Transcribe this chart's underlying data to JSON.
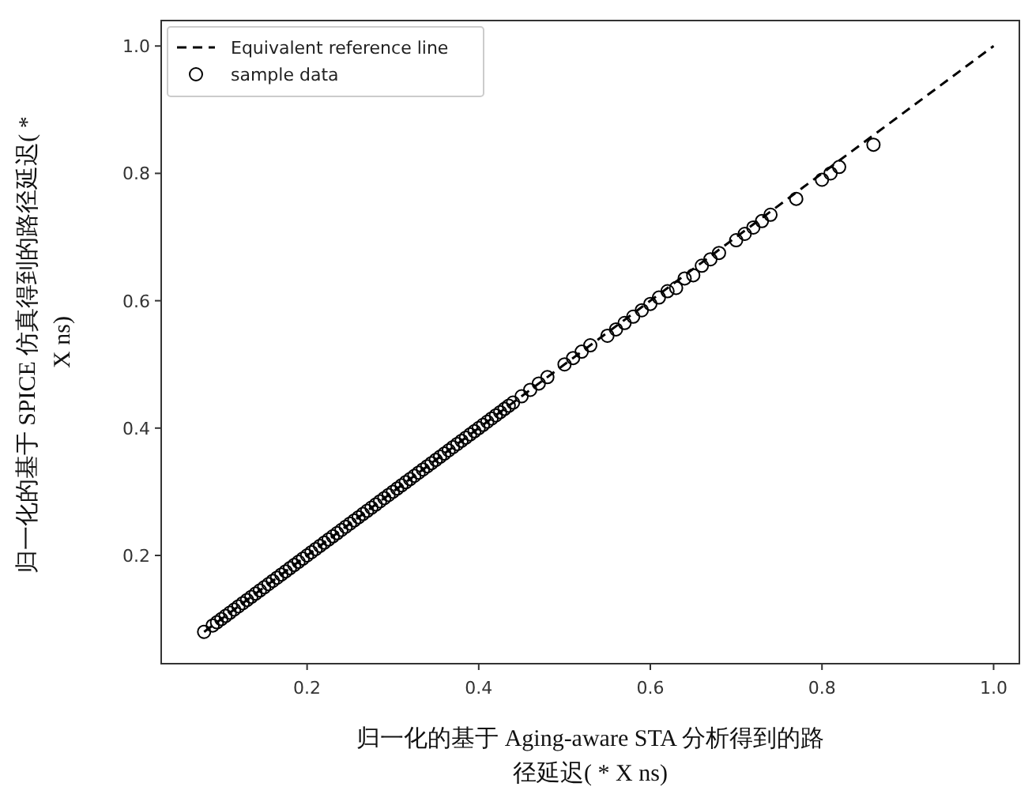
{
  "chart_data": {
    "type": "scatter",
    "xlabel": "归一化的基于 Aging-aware STA 分析得到的路径延迟( * X ns)",
    "ylabel": "归一化的基于 SPICE 仿真得到的路径延迟( * X ns)",
    "xlim": [
      0.03,
      1.03
    ],
    "ylim": [
      0.03,
      1.04
    ],
    "xticks": [
      0.2,
      0.4,
      0.6,
      0.8,
      {
        "value": 1,
        "label": "1.0"
      }
    ],
    "yticks": [
      0.2,
      0.4,
      0.6,
      0.8,
      {
        "value": 1,
        "label": "1.0"
      }
    ],
    "legend": "top left",
    "series": [
      {
        "name": "Equivalent reference line",
        "type": "line",
        "line_style": "dashed",
        "color": "#000000",
        "x": [
          0.08,
          1.0
        ],
        "values": [
          0.08,
          1.0
        ]
      },
      {
        "name": "sample data",
        "marker": "circle",
        "color": "#000000",
        "x": [
          0.08,
          0.09,
          0.095,
          0.1,
          0.105,
          0.11,
          0.115,
          0.12,
          0.125,
          0.13,
          0.135,
          0.14,
          0.145,
          0.15,
          0.155,
          0.16,
          0.165,
          0.17,
          0.175,
          0.18,
          0.185,
          0.19,
          0.195,
          0.2,
          0.205,
          0.21,
          0.215,
          0.22,
          0.225,
          0.23,
          0.235,
          0.24,
          0.245,
          0.25,
          0.255,
          0.26,
          0.265,
          0.27,
          0.275,
          0.28,
          0.285,
          0.29,
          0.295,
          0.3,
          0.305,
          0.31,
          0.315,
          0.32,
          0.325,
          0.33,
          0.335,
          0.34,
          0.345,
          0.35,
          0.355,
          0.36,
          0.365,
          0.37,
          0.375,
          0.38,
          0.385,
          0.39,
          0.395,
          0.4,
          0.405,
          0.41,
          0.415,
          0.42,
          0.425,
          0.43,
          0.435,
          0.44,
          0.45,
          0.46,
          0.47,
          0.48,
          0.5,
          0.51,
          0.52,
          0.53,
          0.55,
          0.56,
          0.57,
          0.58,
          0.59,
          0.6,
          0.61,
          0.62,
          0.63,
          0.64,
          0.65,
          0.66,
          0.67,
          0.68,
          0.7,
          0.71,
          0.72,
          0.73,
          0.74,
          0.77,
          0.8,
          0.81,
          0.82,
          0.86
        ],
        "values": [
          0.08,
          0.09,
          0.095,
          0.1,
          0.105,
          0.11,
          0.115,
          0.12,
          0.125,
          0.13,
          0.135,
          0.14,
          0.145,
          0.15,
          0.155,
          0.16,
          0.165,
          0.17,
          0.175,
          0.18,
          0.185,
          0.19,
          0.195,
          0.2,
          0.205,
          0.21,
          0.215,
          0.22,
          0.225,
          0.23,
          0.235,
          0.24,
          0.245,
          0.25,
          0.255,
          0.26,
          0.265,
          0.27,
          0.275,
          0.28,
          0.285,
          0.29,
          0.295,
          0.3,
          0.305,
          0.31,
          0.315,
          0.32,
          0.325,
          0.33,
          0.335,
          0.34,
          0.345,
          0.35,
          0.355,
          0.36,
          0.365,
          0.37,
          0.375,
          0.38,
          0.385,
          0.39,
          0.395,
          0.4,
          0.405,
          0.41,
          0.415,
          0.42,
          0.425,
          0.43,
          0.435,
          0.44,
          0.45,
          0.46,
          0.47,
          0.48,
          0.5,
          0.51,
          0.52,
          0.53,
          0.545,
          0.555,
          0.565,
          0.575,
          0.585,
          0.595,
          0.605,
          0.615,
          0.62,
          0.635,
          0.64,
          0.655,
          0.665,
          0.675,
          0.695,
          0.705,
          0.715,
          0.725,
          0.735,
          0.76,
          0.79,
          0.8,
          0.81,
          0.845
        ]
      }
    ]
  }
}
